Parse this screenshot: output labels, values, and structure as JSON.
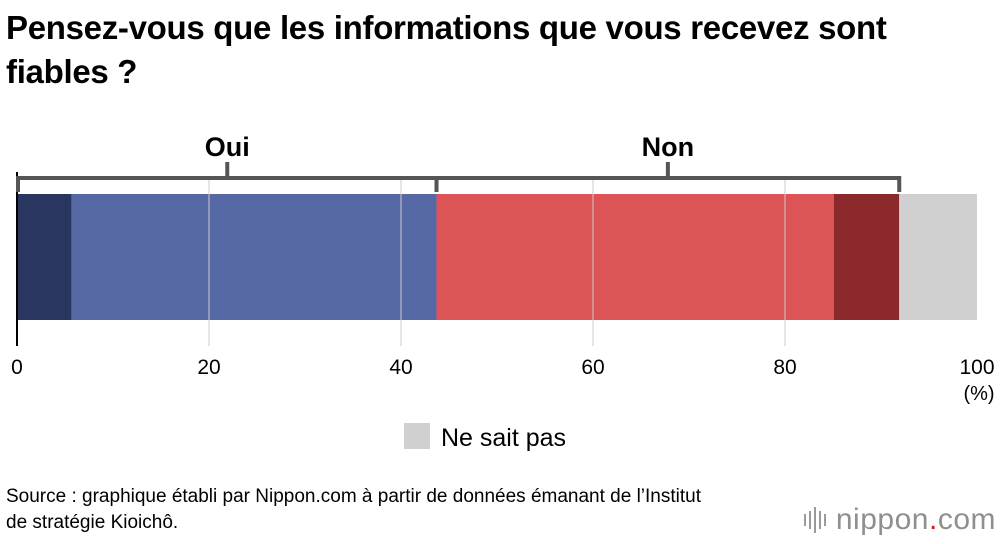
{
  "title": "Pensez-vous que les informations que vous recevez sont fiables ?",
  "source": "Source : graphique établi par Nippon.com à partir de données émanant de l’Institut de stratégie Kioichô.",
  "logo": {
    "name": "nippon",
    "dot": ".",
    "suffix": "com"
  },
  "chart_data": {
    "type": "bar",
    "orientation": "horizontal-stacked",
    "xlim": [
      0,
      100
    ],
    "ticks": [
      0,
      20,
      40,
      60,
      80,
      100
    ],
    "unit_label": "(%)",
    "grid": true,
    "series": [
      {
        "value": 5.7,
        "color": "#283660"
      },
      {
        "value": 38.0,
        "color": "#5669a4"
      },
      {
        "value": 41.4,
        "color": "#dc5455"
      },
      {
        "value": 6.8,
        "color": "#8a282b"
      },
      {
        "name": "Ne sait pas",
        "value": 8.1,
        "color": "#d0d0d0"
      }
    ],
    "groups": [
      {
        "label": "Oui",
        "series_indices": [
          0,
          1
        ]
      },
      {
        "label": "Non",
        "series_indices": [
          2,
          3
        ]
      }
    ],
    "legend": {
      "entries": [
        "Ne sait pas"
      ],
      "placement": "bottom-center"
    },
    "bracket_color": "#555555",
    "grid_color": "#cccccc",
    "axis_color": "#000000"
  }
}
